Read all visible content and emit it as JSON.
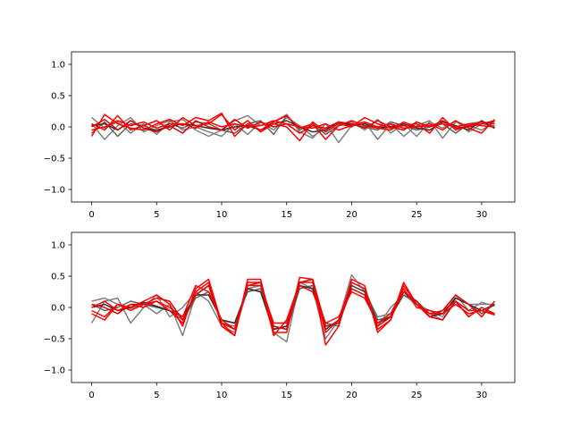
{
  "chart_data": [
    {
      "type": "line",
      "title": "",
      "xlabel": "",
      "ylabel": "",
      "xlim": [
        -1.55,
        32.55
      ],
      "ylim": [
        -1.2,
        1.2
      ],
      "xticks": [
        0,
        5,
        10,
        15,
        20,
        25,
        30
      ],
      "xtick_labels": [
        "0",
        "5",
        "10",
        "15",
        "20",
        "25",
        "30"
      ],
      "yticks": [
        -1.0,
        -0.5,
        0.0,
        0.5,
        1.0
      ],
      "ytick_labels": [
        "−1.0",
        "−0.5",
        "0.0",
        "0.5",
        "1.0"
      ],
      "grid": false,
      "x": [
        0,
        1,
        2,
        3,
        4,
        5,
        6,
        7,
        8,
        9,
        10,
        11,
        12,
        13,
        14,
        15,
        16,
        17,
        18,
        19,
        20,
        21,
        22,
        23,
        24,
        25,
        26,
        27,
        28,
        29,
        30,
        31
      ],
      "series": [
        {
          "color": "#808080",
          "values": [
            0.15,
            -0.02,
            0.08,
            -0.1,
            0.05,
            -0.12,
            0.08,
            0.12,
            -0.05,
            -0.15,
            -0.05,
            0.1,
            0.18,
            0.02,
            0.08,
            0.2,
            -0.08,
            -0.18,
            0.05,
            -0.25,
            0.02,
            0.08,
            -0.2,
            0.05,
            -0.15,
            0.02,
            0.1,
            -0.18,
            0.08,
            0.02,
            -0.05,
            0.08
          ]
        },
        {
          "color": "#808080",
          "values": [
            0.05,
            -0.2,
            0.02,
            0.15,
            -0.08,
            0.02,
            0.1,
            -0.05,
            0.0,
            -0.08,
            -0.15,
            0.05,
            -0.12,
            0.08,
            -0.05,
            0.15,
            0.02,
            -0.15,
            -0.02,
            0.05,
            0.08,
            -0.05,
            0.12,
            -0.1,
            0.05,
            -0.15,
            0.08,
            -0.02,
            0.1,
            -0.08,
            0.05,
            0.02
          ]
        },
        {
          "color": "#606060",
          "values": [
            -0.1,
            0.08,
            -0.15,
            0.05,
            0.02,
            -0.08,
            0.05,
            -0.02,
            0.08,
            0.05,
            -0.05,
            -0.1,
            0.05,
            0.1,
            -0.12,
            0.18,
            -0.05,
            0.05,
            -0.12,
            0.02,
            0.05,
            0.0,
            -0.05,
            0.08,
            0.02,
            -0.05,
            0.0,
            0.05,
            -0.1,
            0.05,
            0.08,
            -0.02
          ]
        },
        {
          "color": "#303030",
          "values": [
            0.02,
            0.05,
            -0.05,
            0.1,
            -0.02,
            -0.05,
            0.0,
            0.05,
            0.02,
            -0.02,
            -0.05,
            0.0,
            0.02,
            -0.05,
            0.05,
            0.1,
            0.0,
            -0.08,
            -0.05,
            0.08,
            0.02,
            0.05,
            -0.02,
            0.0,
            0.05,
            -0.02,
            -0.05,
            0.08,
            0.02,
            -0.05,
            0.1,
            -0.02
          ]
        },
        {
          "color": "#ff0000",
          "values": [
            -0.15,
            0.2,
            0.05,
            -0.02,
            -0.05,
            0.05,
            0.12,
            0.02,
            0.15,
            0.1,
            0.22,
            -0.15,
            0.05,
            -0.05,
            0.08,
            0.18,
            -0.02,
            0.05,
            -0.2,
            0.02,
            0.1,
            0.02,
            -0.02,
            -0.05,
            0.08,
            0.0,
            0.05,
            -0.05,
            0.1,
            -0.02,
            -0.1,
            0.12
          ]
        },
        {
          "color": "#ff0000",
          "values": [
            0.05,
            -0.05,
            0.18,
            -0.05,
            0.02,
            0.1,
            -0.05,
            0.15,
            0.02,
            0.05,
            0.2,
            -0.05,
            0.1,
            -0.08,
            0.05,
            0.0,
            -0.22,
            0.08,
            -0.08,
            0.05,
            0.0,
            0.15,
            0.05,
            -0.02,
            0.02,
            0.05,
            -0.1,
            0.15,
            -0.05,
            0.02,
            0.08,
            0.05
          ]
        },
        {
          "color": "#e00000",
          "values": [
            0.0,
            0.12,
            -0.05,
            0.1,
            -0.02,
            -0.08,
            0.02,
            -0.1,
            0.1,
            0.0,
            -0.05,
            0.12,
            -0.02,
            0.08,
            0.0,
            0.05,
            -0.1,
            0.02,
            -0.02,
            0.08,
            0.05,
            -0.02,
            0.1,
            0.0,
            -0.05,
            0.08,
            0.0,
            0.1,
            -0.02,
            0.0,
            0.05,
            0.1
          ]
        },
        {
          "color": "#ff0000",
          "values": [
            -0.05,
            0.0,
            0.1,
            0.02,
            0.08,
            -0.02,
            0.05,
            0.05,
            -0.02,
            0.08,
            0.0,
            0.05,
            0.0,
            0.02,
            0.1,
            0.05,
            0.0,
            -0.02,
            0.05,
            -0.05,
            0.02,
            0.08,
            0.0,
            0.05,
            -0.02,
            0.0,
            0.02,
            0.05,
            0.0,
            0.05,
            0.02,
            0.0
          ]
        }
      ]
    },
    {
      "type": "line",
      "title": "",
      "xlabel": "",
      "ylabel": "",
      "xlim": [
        -1.55,
        32.55
      ],
      "ylim": [
        -1.2,
        1.2
      ],
      "xticks": [
        0,
        5,
        10,
        15,
        20,
        25,
        30
      ],
      "xtick_labels": [
        "0",
        "5",
        "10",
        "15",
        "20",
        "25",
        "30"
      ],
      "yticks": [
        -1.0,
        -0.5,
        0.0,
        0.5,
        1.0
      ],
      "ytick_labels": [
        "−1.0",
        "−0.5",
        "0.0",
        "0.5",
        "1.0"
      ],
      "grid": false,
      "x": [
        0,
        1,
        2,
        3,
        4,
        5,
        6,
        7,
        8,
        9,
        10,
        11,
        12,
        13,
        14,
        15,
        16,
        17,
        18,
        19,
        20,
        21,
        22,
        23,
        24,
        25,
        26,
        27,
        28,
        29,
        30,
        31
      ],
      "series": [
        {
          "color": "#808080",
          "values": [
            0.1,
            0.15,
            0.05,
            -0.02,
            0.05,
            -0.1,
            0.05,
            -0.45,
            0.2,
            0.35,
            -0.25,
            -0.3,
            0.3,
            0.25,
            -0.4,
            -0.55,
            0.4,
            0.3,
            -0.5,
            -0.2,
            0.52,
            0.25,
            -0.15,
            -0.1,
            0.25,
            0.1,
            -0.1,
            -0.2,
            0.15,
            0.05,
            0.05,
            0.05
          ]
        },
        {
          "color": "#808080",
          "values": [
            -0.25,
            0.1,
            0.15,
            -0.25,
            0.0,
            0.2,
            -0.15,
            0.0,
            0.25,
            0.1,
            -0.3,
            -0.4,
            0.3,
            0.35,
            -0.35,
            -0.3,
            0.35,
            0.25,
            -0.3,
            -0.25,
            0.3,
            0.2,
            -0.3,
            0.0,
            0.2,
            0.05,
            -0.05,
            -0.15,
            0.2,
            -0.05,
            0.08,
            0.02
          ]
        },
        {
          "color": "#606060",
          "values": [
            0.05,
            -0.05,
            0.0,
            0.1,
            0.05,
            0.0,
            -0.05,
            -0.2,
            0.15,
            0.25,
            -0.2,
            -0.25,
            0.25,
            0.3,
            -0.3,
            -0.35,
            0.3,
            0.35,
            -0.25,
            -0.3,
            0.4,
            0.3,
            -0.2,
            -0.15,
            0.2,
            0.1,
            -0.1,
            -0.1,
            0.15,
            0.05,
            -0.1,
            0.05
          ]
        },
        {
          "color": "#303030",
          "values": [
            0.0,
            0.05,
            -0.05,
            0.0,
            0.08,
            0.02,
            -0.05,
            -0.15,
            0.2,
            0.2,
            -0.2,
            -0.25,
            0.3,
            0.25,
            -0.35,
            -0.3,
            0.35,
            0.3,
            -0.35,
            -0.2,
            0.35,
            0.25,
            -0.25,
            -0.15,
            0.25,
            0.05,
            -0.15,
            -0.1,
            0.15,
            0.05,
            -0.05,
            0.05
          ]
        },
        {
          "color": "#ff0000",
          "values": [
            -0.05,
            -0.15,
            0.05,
            0.0,
            0.1,
            0.2,
            0.05,
            -0.3,
            0.3,
            0.45,
            -0.25,
            -0.45,
            0.45,
            0.45,
            -0.4,
            -0.4,
            0.48,
            0.45,
            -0.6,
            -0.3,
            0.45,
            0.35,
            -0.4,
            -0.2,
            0.4,
            0.05,
            -0.15,
            -0.05,
            0.2,
            0.05,
            -0.15,
            0.1
          ]
        },
        {
          "color": "#ff0000",
          "values": [
            0.0,
            0.1,
            -0.05,
            0.05,
            0.0,
            0.1,
            -0.05,
            -0.25,
            0.25,
            0.4,
            -0.3,
            -0.45,
            0.4,
            0.4,
            -0.45,
            -0.2,
            0.4,
            0.4,
            -0.4,
            -0.2,
            0.4,
            0.3,
            -0.35,
            -0.2,
            0.35,
            0.05,
            -0.1,
            -0.05,
            0.1,
            -0.05,
            -0.05,
            -0.1
          ]
        },
        {
          "color": "#e00000",
          "values": [
            0.05,
            0.0,
            -0.1,
            0.05,
            0.05,
            0.15,
            0.1,
            -0.2,
            0.2,
            0.35,
            -0.25,
            -0.35,
            0.35,
            0.4,
            -0.3,
            -0.35,
            0.4,
            0.45,
            -0.3,
            -0.25,
            0.3,
            0.2,
            -0.3,
            -0.15,
            0.25,
            0.1,
            -0.15,
            -0.2,
            0.1,
            -0.15,
            0.0,
            -0.1
          ]
        },
        {
          "color": "#ff0000",
          "values": [
            -0.1,
            -0.2,
            0.05,
            -0.05,
            0.05,
            0.1,
            0.0,
            -0.15,
            0.35,
            0.25,
            -0.2,
            -0.35,
            0.35,
            0.35,
            -0.25,
            -0.25,
            0.35,
            0.25,
            -0.25,
            -0.15,
            0.25,
            0.15,
            -0.25,
            -0.1,
            0.3,
            0.0,
            -0.05,
            -0.1,
            0.05,
            -0.1,
            -0.05,
            -0.12
          ]
        }
      ]
    }
  ]
}
